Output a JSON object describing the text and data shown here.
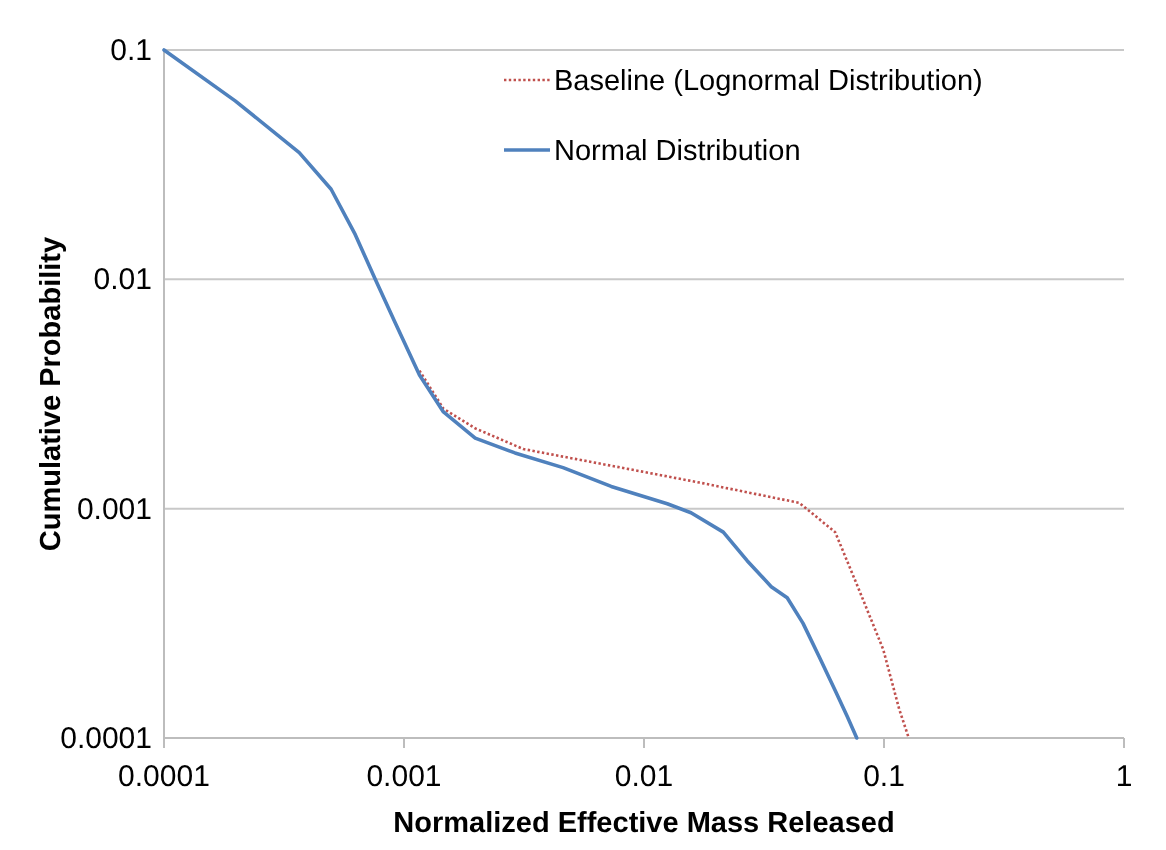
{
  "chart_data": {
    "type": "line",
    "xlabel": "Normalized Effective Mass Released",
    "ylabel": "Cumulative Probability",
    "log": "xy",
    "xlim": [
      0.0001,
      1
    ],
    "ylim": [
      0.0001,
      0.1
    ],
    "xticks": [
      0.0001,
      0.001,
      0.01,
      0.1,
      1
    ],
    "yticks": [
      0.0001,
      0.001,
      0.01,
      0.1
    ],
    "grid": "y",
    "legend": "top right",
    "series": [
      {
        "name": "Baseline (Lognormal Distribution)",
        "color": "#c0504d",
        "line_style": "dotted",
        "x": [
          0.00116,
          0.00146,
          0.00198,
          0.00314,
          0.00498,
          0.0092,
          0.017,
          0.029,
          0.0444,
          0.0517,
          0.0626,
          0.0789,
          0.0993,
          0.1156,
          0.1268
        ],
        "values": [
          0.004,
          0.00273,
          0.00224,
          0.00182,
          0.00166,
          0.00147,
          0.0013,
          0.00116,
          0.00106,
          0.00093,
          0.00079,
          0.00044,
          0.000243,
          0.000134,
          0.0001
        ]
      },
      {
        "name": "Normal Distribution",
        "color": "#4f81bd",
        "line_style": "solid",
        "x": [
          0.0001,
          0.000198,
          0.000366,
          0.000497,
          0.000626,
          0.000759,
          0.000919,
          0.00116,
          0.00146,
          0.00198,
          0.0029,
          0.0046,
          0.0073,
          0.0125,
          0.0157,
          0.0214,
          0.0269,
          0.0339,
          0.0395,
          0.046,
          0.0537,
          0.0626,
          0.0703,
          0.077
        ],
        "values": [
          0.1,
          0.06,
          0.0357,
          0.0247,
          0.0157,
          0.01,
          0.00646,
          0.00383,
          0.00264,
          0.00203,
          0.00175,
          0.00151,
          0.00125,
          0.00105,
          0.00096,
          0.00079,
          0.000593,
          0.000457,
          0.000409,
          0.000316,
          0.000226,
          0.000161,
          0.000124,
          0.0001
        ]
      }
    ]
  }
}
